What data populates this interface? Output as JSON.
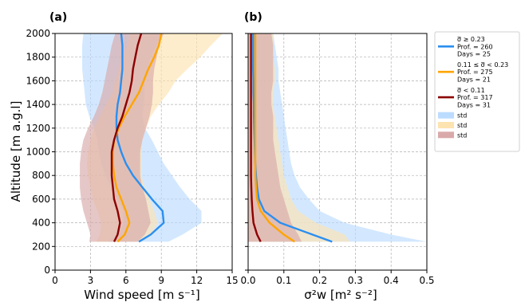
{
  "figure": {
    "panel_a_label": "(a)",
    "panel_b_label": "(b)",
    "shared_ylabel": "Altitude [m a.g.l]"
  },
  "colors": {
    "high": "#2b8ff0",
    "mid": "#ffa500",
    "low": "#8b0000",
    "high_std": "#bcdcff",
    "mid_std": "#fde3b0",
    "low_std": "#d9a9a9"
  },
  "legend": {
    "entries": [
      {
        "label_lines": [
          "σ̅ ≥ 0.23",
          "Prof. = 260",
          "Days = 25"
        ],
        "color_key": "high",
        "kind": "line"
      },
      {
        "label_lines": [
          "0.11 ≤ σ̅ < 0.23",
          "Prof. = 275",
          "Days = 21"
        ],
        "color_key": "mid",
        "kind": "line"
      },
      {
        "label_lines": [
          "σ̅ < 0.11",
          "Prof. = 317",
          "Days = 31"
        ],
        "color_key": "low",
        "kind": "line"
      },
      {
        "label_lines": [
          "std"
        ],
        "color_key": "high_std",
        "kind": "patch"
      },
      {
        "label_lines": [
          "std"
        ],
        "color_key": "mid_std",
        "kind": "patch"
      },
      {
        "label_lines": [
          "std"
        ],
        "color_key": "low_std",
        "kind": "patch"
      }
    ]
  },
  "chart_data": [
    {
      "type": "line",
      "panel": "a",
      "xlabel": "Wind speed [m s⁻¹]",
      "ylabel": "Altitude [m a.g.l]",
      "xlim": [
        0,
        15
      ],
      "ylim": [
        0,
        2000
      ],
      "xticks": [
        0,
        3,
        6,
        9,
        12,
        15
      ],
      "yticks": [
        0,
        200,
        400,
        600,
        800,
        1000,
        1200,
        1400,
        1600,
        1800,
        2000
      ],
      "grid": true,
      "y": [
        240,
        300,
        400,
        500,
        600,
        700,
        800,
        900,
        1000,
        1100,
        1200,
        1300,
        1400,
        1500,
        1600,
        1700,
        1800,
        1900,
        2000
      ],
      "series": [
        {
          "color_key": "high",
          "band_color_key": "high_std",
          "mean": [
            7.1,
            8.1,
            9.2,
            9.1,
            8.2,
            7.4,
            6.6,
            6.0,
            5.6,
            5.3,
            5.2,
            5.2,
            5.3,
            5.5,
            5.6,
            5.7,
            5.7,
            5.7,
            5.6
          ],
          "lower": [
            4.5,
            5.2,
            5.8,
            5.8,
            5.3,
            4.8,
            4.3,
            3.9,
            3.7,
            3.6,
            3.3,
            2.9,
            2.6,
            2.5,
            2.4,
            2.3,
            2.3,
            2.3,
            2.4
          ],
          "upper": [
            9.6,
            10.8,
            12.4,
            12.4,
            11.4,
            10.6,
            9.9,
            9.2,
            8.7,
            8.2,
            7.6,
            7.4,
            7.5,
            7.6,
            7.6,
            7.8,
            8.1,
            8.6,
            9.0
          ]
        },
        {
          "color_key": "mid",
          "band_color_key": "mid_std",
          "mean": [
            5.3,
            5.9,
            6.3,
            6.0,
            5.6,
            5.2,
            5.0,
            4.9,
            4.9,
            5.0,
            5.4,
            5.9,
            6.5,
            7.1,
            7.5,
            7.9,
            8.4,
            8.8,
            9.0
          ],
          "lower": [
            3.5,
            3.8,
            3.9,
            3.6,
            3.2,
            3.0,
            2.8,
            2.7,
            2.8,
            3.0,
            3.3,
            3.8,
            4.3,
            4.9,
            5.1,
            5.4,
            5.8,
            6.1,
            6.4
          ],
          "upper": [
            7.3,
            8.1,
            8.7,
            8.4,
            8.0,
            7.6,
            7.3,
            7.3,
            7.3,
            7.4,
            7.7,
            8.1,
            8.8,
            9.6,
            10.2,
            11.2,
            12.3,
            13.2,
            14.2
          ]
        },
        {
          "color_key": "low",
          "band_color_key": "low_std",
          "mean": [
            5.0,
            5.3,
            5.5,
            5.3,
            5.0,
            4.9,
            4.8,
            4.8,
            4.8,
            5.0,
            5.3,
            5.7,
            6.0,
            6.3,
            6.5,
            6.6,
            6.8,
            7.0,
            7.3
          ],
          "lower": [
            2.9,
            3.0,
            2.7,
            2.4,
            2.2,
            2.1,
            2.1,
            2.1,
            2.2,
            2.4,
            2.8,
            3.3,
            3.7,
            4.0,
            4.2,
            4.4,
            4.6,
            4.8,
            5.1
          ],
          "upper": [
            7.0,
            7.6,
            8.1,
            7.9,
            7.7,
            7.4,
            7.2,
            7.2,
            7.2,
            7.4,
            7.7,
            8.0,
            8.2,
            8.3,
            8.3,
            8.4,
            8.6,
            8.8,
            9.2
          ]
        }
      ]
    },
    {
      "type": "line",
      "panel": "b",
      "xlabel": "σ²w [m² s⁻²]",
      "xlim": [
        0,
        0.5
      ],
      "ylim": [
        0,
        2000
      ],
      "xticks": [
        0.0,
        0.1,
        0.2,
        0.3,
        0.4,
        0.5
      ],
      "yticks": [
        0,
        200,
        400,
        600,
        800,
        1000,
        1200,
        1400,
        1600,
        1800,
        2000
      ],
      "grid": true,
      "y": [
        240,
        300,
        400,
        500,
        600,
        700,
        800,
        900,
        1000,
        1100,
        1200,
        1300,
        1400,
        1500,
        1600,
        1700,
        1800,
        1900,
        2000
      ],
      "series": [
        {
          "color_key": "high",
          "band_color_key": "high_std",
          "mean": [
            0.235,
            0.18,
            0.09,
            0.045,
            0.03,
            0.025,
            0.022,
            0.02,
            0.019,
            0.018,
            0.017,
            0.016,
            0.016,
            0.015,
            0.015,
            0.014,
            0.014,
            0.014,
            0.014
          ],
          "lower": [
            0.0,
            0.0,
            0.0,
            0.0,
            0.0,
            0.0,
            0.0,
            0.0,
            0.0,
            0.0,
            0.0,
            0.0,
            0.0,
            0.0,
            0.0,
            0.0,
            0.0,
            0.0,
            0.0
          ],
          "upper": [
            0.5,
            0.4,
            0.27,
            0.2,
            0.17,
            0.145,
            0.13,
            0.12,
            0.115,
            0.11,
            0.105,
            0.1,
            0.095,
            0.09,
            0.085,
            0.085,
            0.08,
            0.075,
            0.07
          ]
        },
        {
          "color_key": "mid",
          "band_color_key": "mid_std",
          "mean": [
            0.13,
            0.1,
            0.06,
            0.035,
            0.025,
            0.022,
            0.02,
            0.02,
            0.02,
            0.02,
            0.02,
            0.02,
            0.02,
            0.02,
            0.02,
            0.02,
            0.02,
            0.02,
            0.02
          ],
          "lower": [
            0.0,
            0.0,
            0.0,
            0.0,
            0.0,
            0.0,
            0.0,
            0.0,
            0.0,
            0.0,
            0.0,
            0.0,
            0.0,
            0.0,
            0.0,
            0.0,
            0.0,
            0.0,
            0.0
          ],
          "upper": [
            0.285,
            0.27,
            0.19,
            0.14,
            0.12,
            0.11,
            0.1,
            0.095,
            0.09,
            0.085,
            0.08,
            0.075,
            0.07,
            0.07,
            0.075,
            0.075,
            0.07,
            0.07,
            0.07
          ]
        },
        {
          "color_key": "low",
          "band_color_key": "low_std",
          "mean": [
            0.035,
            0.025,
            0.015,
            0.012,
            0.01,
            0.009,
            0.008,
            0.008,
            0.008,
            0.008,
            0.008,
            0.008,
            0.008,
            0.008,
            0.008,
            0.008,
            0.008,
            0.008,
            0.008
          ],
          "lower": [
            0.0,
            0.0,
            0.0,
            0.0,
            0.0,
            0.0,
            0.0,
            0.0,
            0.0,
            0.0,
            0.0,
            0.0,
            0.0,
            0.0,
            0.0,
            0.0,
            0.0,
            0.0,
            0.0
          ],
          "upper": [
            0.15,
            0.14,
            0.12,
            0.11,
            0.1,
            0.09,
            0.085,
            0.08,
            0.075,
            0.07,
            0.07,
            0.07,
            0.065,
            0.065,
            0.07,
            0.07,
            0.07,
            0.07,
            0.065
          ]
        }
      ]
    }
  ]
}
